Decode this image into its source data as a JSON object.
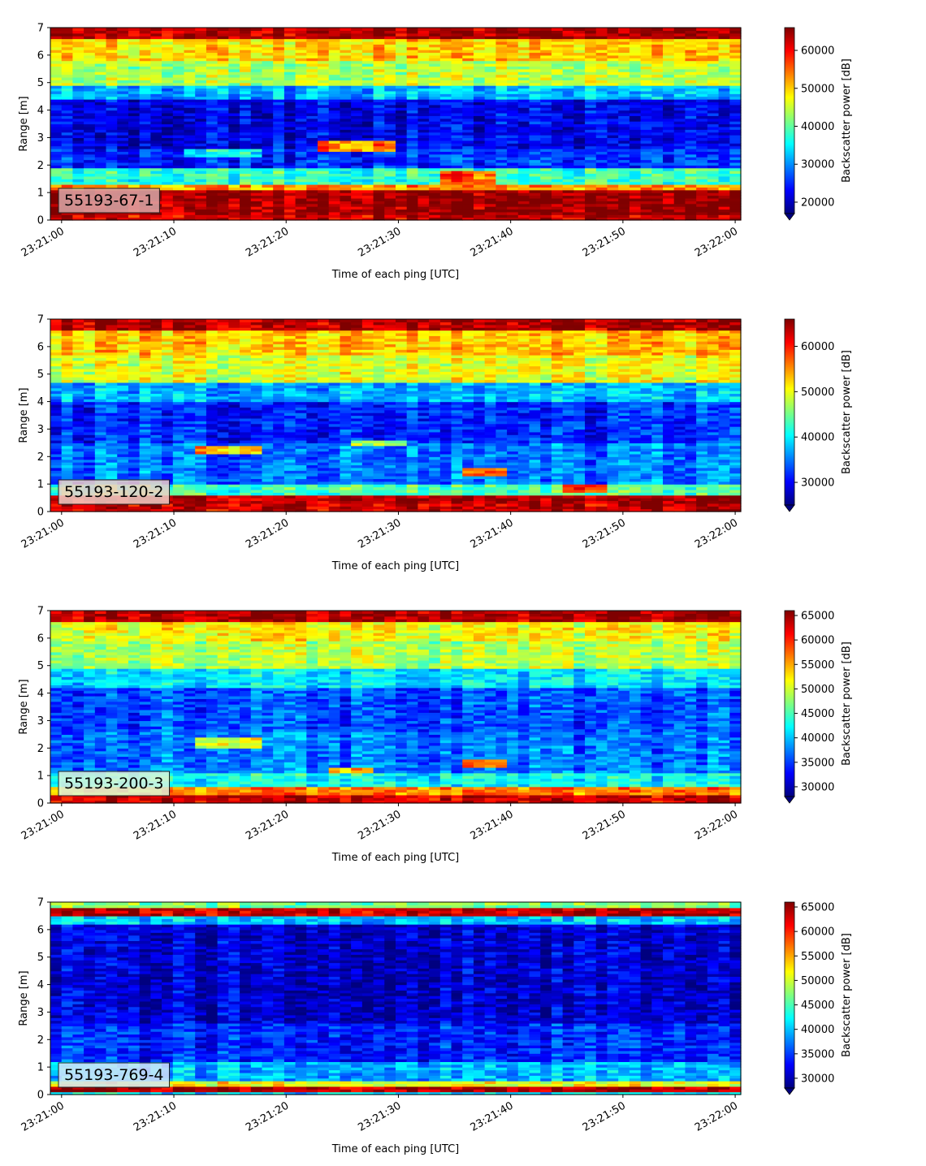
{
  "figure": {
    "background": "#ffffff"
  },
  "colormap": {
    "name": "jet",
    "stops": [
      "#00007f",
      "#0000ff",
      "#007fff",
      "#00ffff",
      "#7fff7f",
      "#ffff00",
      "#ff7f00",
      "#ff0000",
      "#7f0000"
    ]
  },
  "chart_data": [
    {
      "type": "heatmap",
      "label": "55193-67-1",
      "label_box_color": "#dba8a8",
      "xlabel": "Time of each ping [UTC]",
      "ylabel": "Range [m]",
      "xticks": [
        "23:21:00",
        "23:21:10",
        "23:21:20",
        "23:21:30",
        "23:21:40",
        "23:21:50",
        "23:22:00"
      ],
      "xlim_seconds": [
        -1,
        60.5
      ],
      "yticks": [
        0,
        1,
        2,
        3,
        4,
        5,
        6,
        7
      ],
      "ylim": [
        0,
        7
      ],
      "colorbar": {
        "label": "Backscatter power [dB]",
        "ticks": [
          20000,
          30000,
          40000,
          50000,
          60000
        ],
        "range": [
          17000,
          66000
        ]
      },
      "layers": [
        {
          "from": 0,
          "to": 0.2,
          "level": 0.92
        },
        {
          "from": 0.2,
          "to": 1.1,
          "level": 0.97
        },
        {
          "from": 1.1,
          "to": 1.35,
          "level": 0.72
        },
        {
          "from": 1.35,
          "to": 1.95,
          "level": 0.42
        },
        {
          "from": 1.95,
          "to": 2.6,
          "level": 0.16
        },
        {
          "from": 2.6,
          "to": 4.4,
          "level": 0.1
        },
        {
          "from": 4.4,
          "to": 4.9,
          "level": 0.3
        },
        {
          "from": 4.9,
          "to": 5.8,
          "level": 0.55
        },
        {
          "from": 5.8,
          "to": 6.6,
          "level": 0.66
        },
        {
          "from": 6.6,
          "to": 7.0,
          "level": 0.95
        }
      ],
      "features": [
        {
          "t0": 23,
          "t1": 30,
          "r0": 2.55,
          "r1": 2.85,
          "level": 0.75
        },
        {
          "t0": 34,
          "t1": 39,
          "r0": 1.3,
          "r1": 1.75,
          "level": 0.78
        },
        {
          "t0": 11,
          "t1": 18,
          "r0": 2.3,
          "r1": 2.55,
          "level": 0.38
        }
      ]
    },
    {
      "type": "heatmap",
      "label": "55193-120-2",
      "label_box_color": "#f0d0c8",
      "xlabel": "Time of each ping [UTC]",
      "ylabel": "Range [m]",
      "xticks": [
        "23:21:00",
        "23:21:10",
        "23:21:20",
        "23:21:30",
        "23:21:40",
        "23:21:50",
        "23:22:00"
      ],
      "xlim_seconds": [
        -1,
        60.5
      ],
      "yticks": [
        0,
        1,
        2,
        3,
        4,
        5,
        6,
        7
      ],
      "ylim": [
        0,
        7
      ],
      "colorbar": {
        "label": "Backscatter power [dB]",
        "ticks": [
          30000,
          40000,
          50000,
          60000
        ],
        "range": [
          25000,
          66000
        ]
      },
      "layers": [
        {
          "from": 0,
          "to": 0.3,
          "level": 0.92
        },
        {
          "from": 0.3,
          "to": 0.6,
          "level": 0.96
        },
        {
          "from": 0.6,
          "to": 1.0,
          "level": 0.45
        },
        {
          "from": 1.0,
          "to": 2.5,
          "level": 0.24
        },
        {
          "from": 2.5,
          "to": 4.0,
          "level": 0.16
        },
        {
          "from": 4.0,
          "to": 4.7,
          "level": 0.3
        },
        {
          "from": 4.7,
          "to": 5.7,
          "level": 0.6
        },
        {
          "from": 5.7,
          "to": 6.6,
          "level": 0.68
        },
        {
          "from": 6.6,
          "to": 7.0,
          "level": 0.95
        }
      ],
      "features": [
        {
          "t0": 12,
          "t1": 18,
          "r0": 2.15,
          "r1": 2.4,
          "level": 0.7
        },
        {
          "t0": 26,
          "t1": 31,
          "r0": 2.35,
          "r1": 2.6,
          "level": 0.55
        },
        {
          "t0": 36,
          "t1": 40,
          "r0": 1.3,
          "r1": 1.55,
          "level": 0.78
        },
        {
          "t0": 45,
          "t1": 49,
          "r0": 0.75,
          "r1": 1.0,
          "level": 0.85
        }
      ]
    },
    {
      "type": "heatmap",
      "label": "55193-200-3",
      "label_box_color": "#dcf5dc",
      "xlabel": "Time of each ping [UTC]",
      "ylabel": "Range [m]",
      "xticks": [
        "23:21:00",
        "23:21:10",
        "23:21:20",
        "23:21:30",
        "23:21:40",
        "23:21:50",
        "23:22:00"
      ],
      "xlim_seconds": [
        -1,
        60.5
      ],
      "yticks": [
        0,
        1,
        2,
        3,
        4,
        5,
        6,
        7
      ],
      "ylim": [
        0,
        7
      ],
      "colorbar": {
        "label": "Backscatter power [dB]",
        "ticks": [
          30000,
          35000,
          40000,
          45000,
          50000,
          55000,
          60000,
          65000
        ],
        "range": [
          28000,
          66000
        ]
      },
      "layers": [
        {
          "from": 0,
          "to": 0.3,
          "level": 0.92
        },
        {
          "from": 0.3,
          "to": 0.65,
          "level": 0.75
        },
        {
          "from": 0.65,
          "to": 1.1,
          "level": 0.38
        },
        {
          "from": 1.1,
          "to": 2.6,
          "level": 0.24
        },
        {
          "from": 2.6,
          "to": 4.2,
          "level": 0.2
        },
        {
          "from": 4.2,
          "to": 4.9,
          "level": 0.35
        },
        {
          "from": 4.9,
          "to": 5.9,
          "level": 0.55
        },
        {
          "from": 5.9,
          "to": 6.6,
          "level": 0.62
        },
        {
          "from": 6.6,
          "to": 7.0,
          "level": 0.95
        }
      ],
      "features": [
        {
          "t0": 12,
          "t1": 18,
          "r0": 2.05,
          "r1": 2.35,
          "level": 0.58
        },
        {
          "t0": 36,
          "t1": 40,
          "r0": 1.35,
          "r1": 1.6,
          "level": 0.78
        },
        {
          "t0": 24,
          "t1": 28,
          "r0": 1.1,
          "r1": 1.3,
          "level": 0.72
        }
      ]
    },
    {
      "type": "heatmap",
      "label": "55193-769-4",
      "label_box_color": "#d4e4f8",
      "xlabel": "Time of each ping [UTC]",
      "ylabel": "Range [m]",
      "xticks": [
        "23:21:00",
        "23:21:10",
        "23:21:20",
        "23:21:30",
        "23:21:40",
        "23:21:50",
        "23:22:00"
      ],
      "xlim_seconds": [
        -1,
        60.5
      ],
      "yticks": [
        0,
        1,
        2,
        3,
        4,
        5,
        6,
        7
      ],
      "ylim": [
        0,
        7
      ],
      "colorbar": {
        "label": "Backscatter power [dB]",
        "ticks": [
          30000,
          35000,
          40000,
          45000,
          50000,
          55000,
          60000,
          65000
        ],
        "range": [
          28000,
          66000
        ]
      },
      "layers": [
        {
          "from": 0,
          "to": 0.12,
          "level": 0.35
        },
        {
          "from": 0.12,
          "to": 0.3,
          "level": 0.95
        },
        {
          "from": 0.3,
          "to": 0.45,
          "level": 0.62
        },
        {
          "from": 0.45,
          "to": 1.2,
          "level": 0.3
        },
        {
          "from": 1.2,
          "to": 2.6,
          "level": 0.16
        },
        {
          "from": 2.6,
          "to": 6.2,
          "level": 0.08
        },
        {
          "from": 6.2,
          "to": 6.55,
          "level": 0.32
        },
        {
          "from": 6.55,
          "to": 6.85,
          "level": 0.93
        },
        {
          "from": 6.85,
          "to": 7.0,
          "level": 0.5
        }
      ],
      "features": []
    }
  ]
}
